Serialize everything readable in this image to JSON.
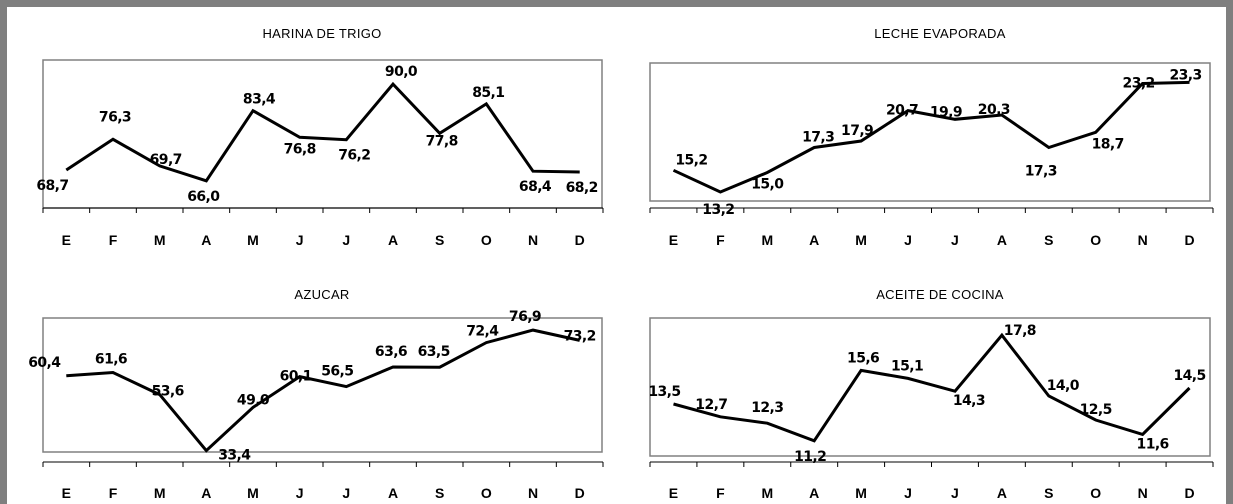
{
  "chart_data": [
    {
      "type": "line",
      "title": "HARINA DE TRIGO",
      "categories": [
        "E",
        "F",
        "M",
        "A",
        "M",
        "J",
        "J",
        "A",
        "S",
        "O",
        "N",
        "D"
      ],
      "values": [
        68.7,
        76.3,
        69.7,
        66.0,
        83.4,
        76.8,
        76.2,
        90.0,
        77.8,
        85.1,
        68.4,
        68.2
      ],
      "labels": [
        "68,7",
        "76,3",
        "69,7",
        "66,0",
        "83,4",
        "76,8",
        "76,2",
        "90,0",
        "77,8",
        "85,1",
        "68,4",
        "68,2"
      ],
      "ylim": [
        60,
        95
      ]
    },
    {
      "type": "line",
      "title": "LECHE EVAPORADA",
      "categories": [
        "E",
        "F",
        "M",
        "A",
        "M",
        "J",
        "J",
        "A",
        "S",
        "O",
        "N",
        "D"
      ],
      "values": [
        15.2,
        13.2,
        15.0,
        17.3,
        17.9,
        20.7,
        19.9,
        20.3,
        17.3,
        18.7,
        23.2,
        23.3
      ],
      "labels": [
        "15,2",
        "13,2",
        "15,0",
        "17,3",
        "17,9",
        "20,7",
        "19,9",
        "20,3",
        "17,3",
        "18,7",
        "23,2",
        "23,3"
      ],
      "ylim": [
        12,
        25
      ]
    },
    {
      "type": "line",
      "title": "AZUCAR",
      "categories": [
        "E",
        "F",
        "M",
        "A",
        "M",
        "J",
        "J",
        "A",
        "S",
        "O",
        "N",
        "D"
      ],
      "values": [
        60.4,
        61.6,
        53.6,
        33.4,
        49.0,
        60.1,
        56.5,
        63.6,
        63.5,
        72.4,
        76.9,
        73.2
      ],
      "labels": [
        "60,4",
        "61,6",
        "53,6",
        "33,4",
        "49,0",
        "60,1",
        "56,5",
        "63,6",
        "63,5",
        "72,4",
        "76,9",
        "73,2"
      ],
      "ylim": [
        30,
        82
      ]
    },
    {
      "type": "line",
      "title": "ACEITE DE COCINA",
      "categories": [
        "E",
        "F",
        "M",
        "A",
        "M",
        "J",
        "J",
        "A",
        "S",
        "O",
        "N",
        "D"
      ],
      "values": [
        13.5,
        12.7,
        12.3,
        11.2,
        15.6,
        15.1,
        14.3,
        17.8,
        14.0,
        12.5,
        11.6,
        14.5
      ],
      "labels": [
        "13,5",
        "12,7",
        "12,3",
        "11,2",
        "15,6",
        "15,1",
        "14,3",
        "17,8",
        "14,0",
        "12,5",
        "11,6",
        "14,5"
      ],
      "ylim": [
        10,
        19
      ]
    }
  ]
}
